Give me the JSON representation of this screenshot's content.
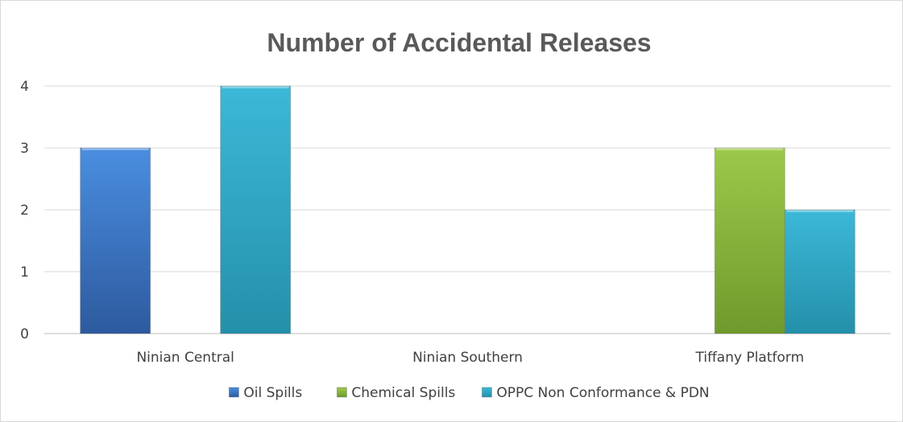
{
  "chart_data": {
    "type": "bar",
    "title": "Number of Accidental Releases",
    "categories": [
      "Ninian Central",
      "Ninian Southern",
      "Tiffany Platform"
    ],
    "series": [
      {
        "name": "Oil Spills",
        "values": [
          3,
          0,
          0
        ],
        "color": "#3f7fd3"
      },
      {
        "name": "Chemical Spills",
        "values": [
          0,
          0,
          3
        ],
        "color": "#8fba3e"
      },
      {
        "name": "OPPC Non Conformance & PDN",
        "values": [
          4,
          0,
          2
        ],
        "color": "#30aac8"
      }
    ],
    "ylim": [
      0,
      4
    ],
    "yticks": [
      0,
      1,
      2,
      3,
      4
    ],
    "grid": true,
    "legend_position": "bottom"
  }
}
